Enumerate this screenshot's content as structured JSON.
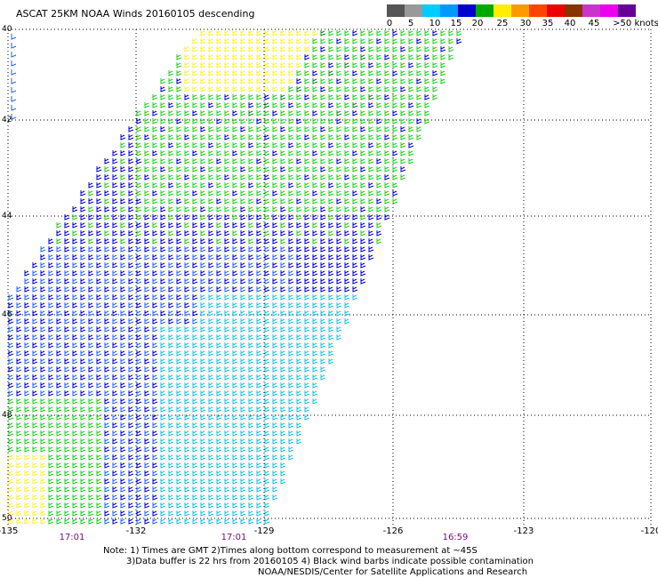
{
  "title": "ASCAT 25KM NOAA Winds 20160105 descending",
  "color_scale": {
    "labels": [
      "0",
      "5",
      "10",
      "15",
      "20",
      "25",
      "30",
      "35",
      "40",
      "45",
      ">50 knots"
    ],
    "colors": [
      "#555555",
      "#999999",
      "#00ccff",
      "#0099ff",
      "#0000cc",
      "#00aa00",
      "#ffee00",
      "#ff9900",
      "#ff4400",
      "#ee0000",
      "#883300",
      "#cc33cc",
      "#ee00ee",
      "#660099"
    ]
  },
  "map": {
    "lon_labels": [
      "-135",
      "-132",
      "-129",
      "-126",
      "-123",
      "-120"
    ],
    "lat_labels": [
      "40",
      "42",
      "44",
      "46",
      "48",
      "50"
    ],
    "time_labels": [
      "17:01",
      "17:01",
      "16:59"
    ]
  },
  "wind_colors": {
    "light_blue": "#22bbee",
    "blue": "#1c6ae8",
    "dark_blue": "#0000cc",
    "green": "#22cc22",
    "dark_green": "#118811",
    "yellow": "#ffee33"
  },
  "notes": {
    "line1": "Note: 1) Times are GMT 2)Times along bottom correspond to measurement at ~45S",
    "line2": "3)Data buffer is 22 hrs from 20160105 4) Black wind barbs indicate possible contamination",
    "line3": "NOAA/NESDIS/Center for Satellite Applications and Research"
  }
}
